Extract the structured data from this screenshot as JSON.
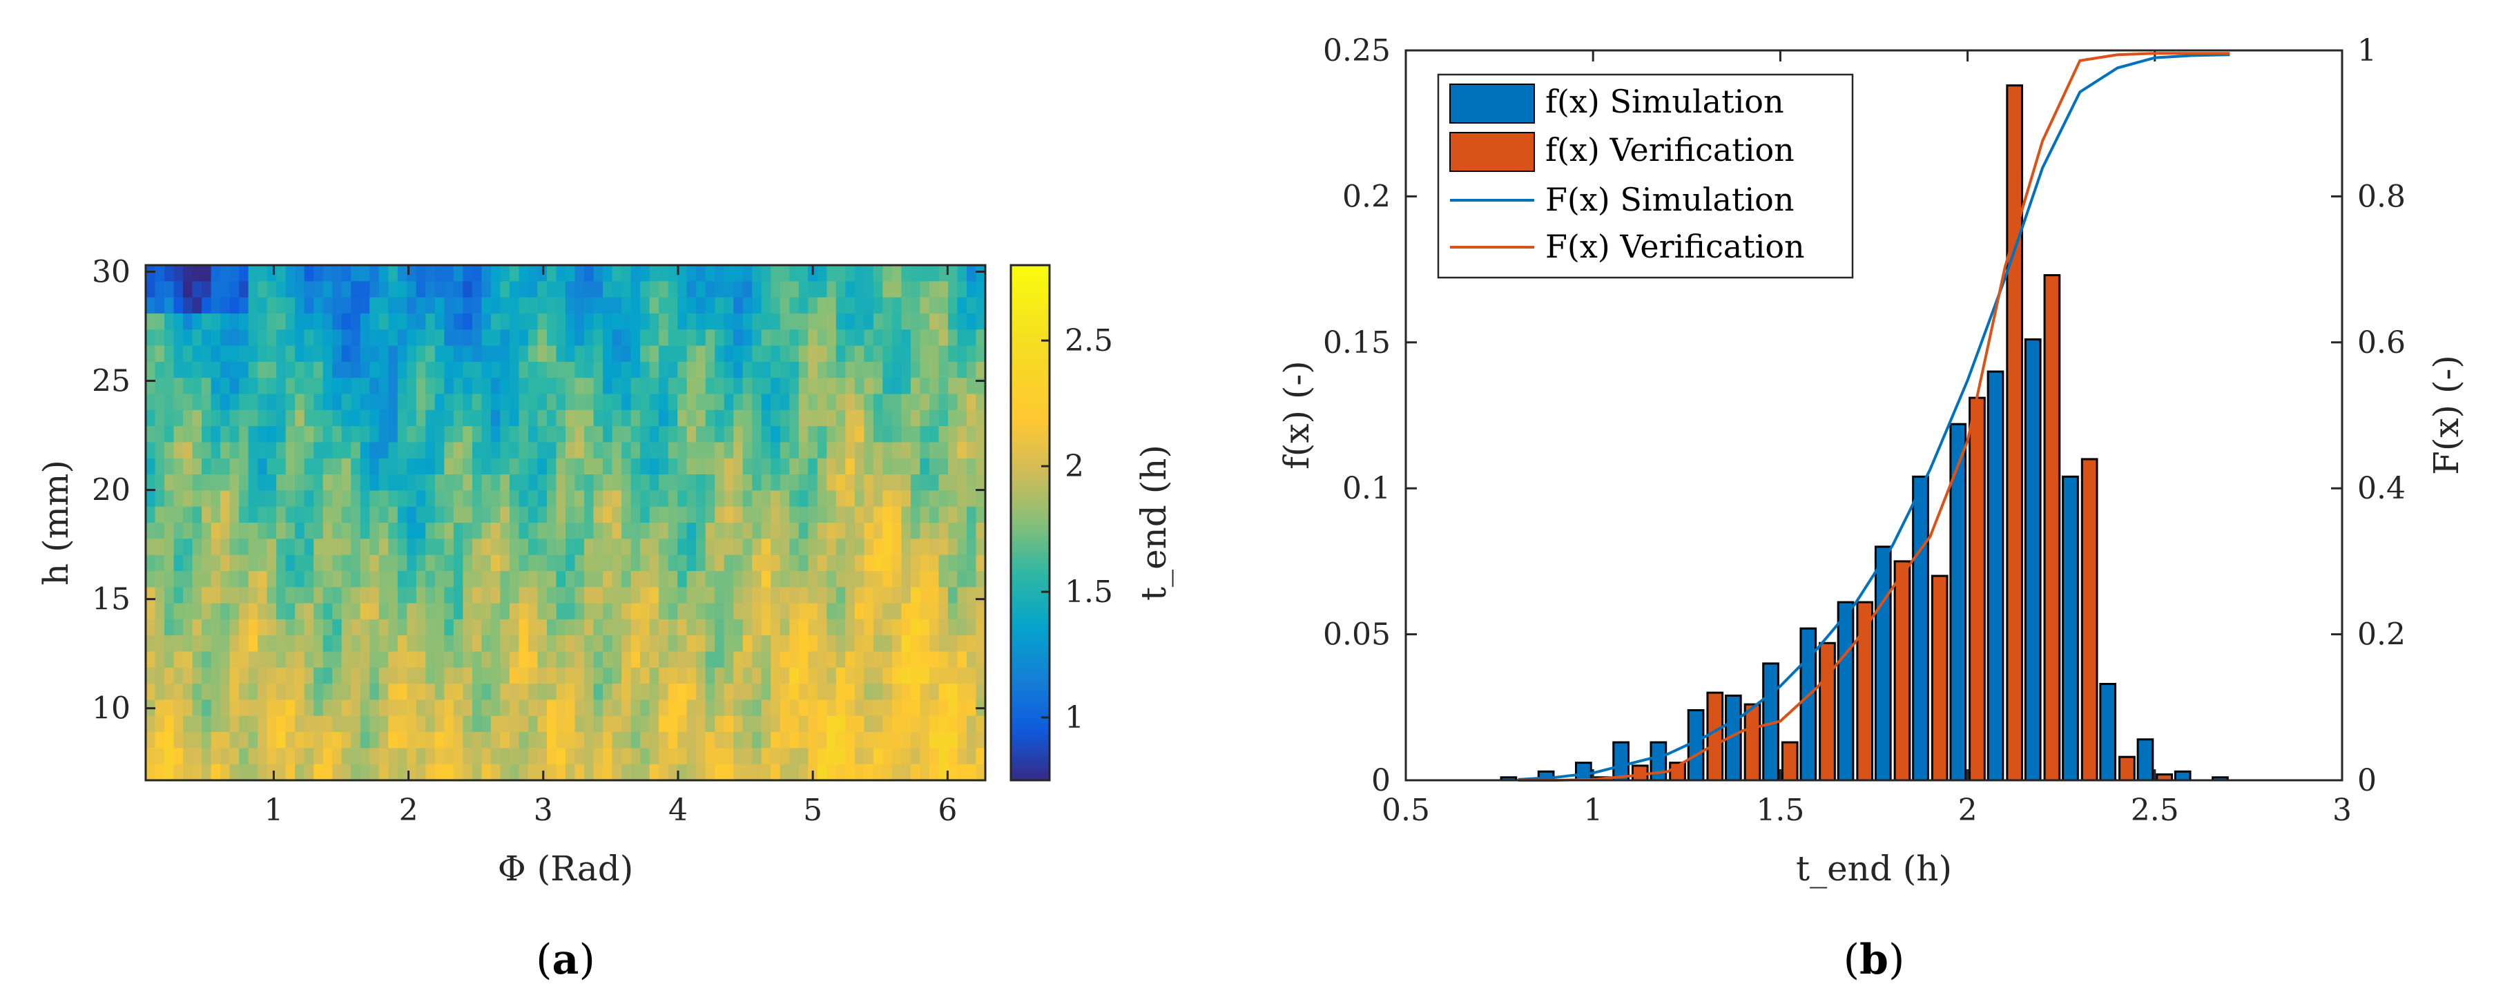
{
  "chart_data": [
    {
      "type": "heatmap",
      "panel_label": "a",
      "xlabel": "Φ (Rad)",
      "ylabel": "h (mm)",
      "xlim": [
        0.05,
        6.28
      ],
      "ylim": [
        6.7,
        30.3
      ],
      "xticks": [
        "1",
        "2",
        "3",
        "4",
        "5",
        "6"
      ],
      "yticks": [
        "10",
        "15",
        "20",
        "25",
        "30"
      ],
      "colorbar": {
        "label": "t_end (h)",
        "clim": [
          0.75,
          2.8
        ],
        "ticks": [
          "1",
          "1.5",
          "2",
          "2.5"
        ],
        "colormap": "parula"
      },
      "rows": 32,
      "cols": 90
    },
    {
      "type": "bar",
      "panel_label": "b",
      "xlabel": "t_end (h)",
      "ylabel": "f(x) (-)",
      "ylabel_right": "F(x) (-)",
      "xlim": [
        0.5,
        3
      ],
      "ylim": [
        0,
        0.25
      ],
      "ylim_right": [
        0,
        1
      ],
      "xticks": [
        "0.5",
        "1",
        "1.5",
        "2",
        "2.5",
        "3"
      ],
      "yticks": [
        "0",
        "0.05",
        "0.1",
        "0.15",
        "0.2",
        "0.25"
      ],
      "yticks_right": [
        "0",
        "0.2",
        "0.4",
        "0.6",
        "0.8",
        "1"
      ],
      "categories": [
        0.8,
        0.9,
        1.0,
        1.1,
        1.2,
        1.3,
        1.4,
        1.5,
        1.6,
        1.7,
        1.8,
        1.9,
        2.0,
        2.1,
        2.2,
        2.3,
        2.4,
        2.5,
        2.6,
        2.7
      ],
      "series": [
        {
          "name": "f(x) Simulation",
          "color": "#0072BD",
          "values": [
            0.001,
            0.003,
            0.006,
            0.013,
            0.013,
            0.024,
            0.029,
            0.04,
            0.052,
            0.061,
            0.08,
            0.104,
            0.122,
            0.14,
            0.151,
            0.104,
            0.033,
            0.014,
            0.003,
            0.001
          ]
        },
        {
          "name": "f(x) Verification",
          "color": "#D95319",
          "values": [
            0,
            0,
            0.001,
            0.005,
            0.006,
            0.03,
            0.026,
            0.013,
            0.047,
            0.061,
            0.075,
            0.07,
            0.131,
            0.238,
            0.173,
            0.11,
            0.008,
            0.002,
            0,
            0
          ]
        }
      ],
      "cdf_series": [
        {
          "name": "F(x) Simulation",
          "color": "#0072BD",
          "x": [
            0.8,
            0.9,
            1.0,
            1.1,
            1.2,
            1.3,
            1.4,
            1.5,
            1.6,
            1.7,
            1.8,
            1.9,
            2.0,
            2.1,
            2.2,
            2.3,
            2.4,
            2.5,
            2.6,
            2.7
          ],
          "values": [
            0.001,
            0.004,
            0.01,
            0.023,
            0.036,
            0.06,
            0.089,
            0.129,
            0.181,
            0.242,
            0.322,
            0.426,
            0.548,
            0.688,
            0.839,
            0.943,
            0.976,
            0.99,
            0.993,
            0.994
          ]
        },
        {
          "name": "F(x) Verification",
          "color": "#D95319",
          "x": [
            0.8,
            0.9,
            1.0,
            1.1,
            1.2,
            1.3,
            1.4,
            1.5,
            1.6,
            1.7,
            1.8,
            1.9,
            2.0,
            2.1,
            2.2,
            2.3,
            2.4,
            2.5,
            2.6,
            2.7
          ],
          "values": [
            0,
            0,
            0.001,
            0.006,
            0.012,
            0.042,
            0.068,
            0.081,
            0.128,
            0.189,
            0.264,
            0.334,
            0.465,
            0.703,
            0.876,
            0.986,
            0.994,
            0.996,
            0.996,
            0.996
          ]
        }
      ],
      "legend": {
        "position": "top-left",
        "entries": [
          "f(x) Simulation",
          "f(x) Verification",
          "F(x) Simulation",
          "F(x) Verification"
        ]
      }
    }
  ]
}
